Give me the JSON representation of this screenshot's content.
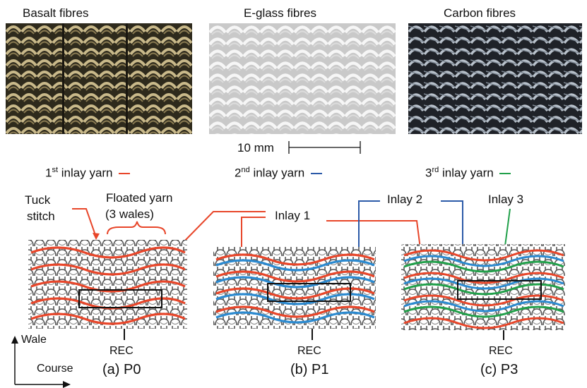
{
  "photos": [
    {
      "title": "Basalt fibres"
    },
    {
      "title": "E-glass fibres"
    },
    {
      "title": "Carbon fibres"
    }
  ],
  "scale_bar": {
    "label": "10 mm"
  },
  "inlay_legend": [
    {
      "ord": "1",
      "sup": "st",
      "text": " inlay yarn",
      "color": "#e8462a"
    },
    {
      "ord": "2",
      "sup": "nd",
      "text": " inlay yarn",
      "color": "#2b5aa8"
    },
    {
      "ord": "3",
      "sup": "rd",
      "text": " inlay yarn",
      "color": "#21a04a"
    }
  ],
  "annotations": {
    "tuck_line1": "Tuck",
    "tuck_line2": "stitch",
    "float_line1": "Floated yarn",
    "float_line2": "(3 wales)",
    "inlay1": "Inlay 1",
    "inlay2": "Inlay 2",
    "inlay3": "Inlay 3"
  },
  "structures": [
    {
      "caption": "(a) P0",
      "rec": "REC"
    },
    {
      "caption": "(b) P1",
      "rec": "REC"
    },
    {
      "caption": "(c) P3",
      "rec": "REC"
    }
  ],
  "axes": {
    "wale": "Wale",
    "course": "Course"
  },
  "colors": {
    "red": "#e8462a",
    "blue": "#2b5aa8",
    "green": "#21a04a",
    "knit": "#555555"
  }
}
